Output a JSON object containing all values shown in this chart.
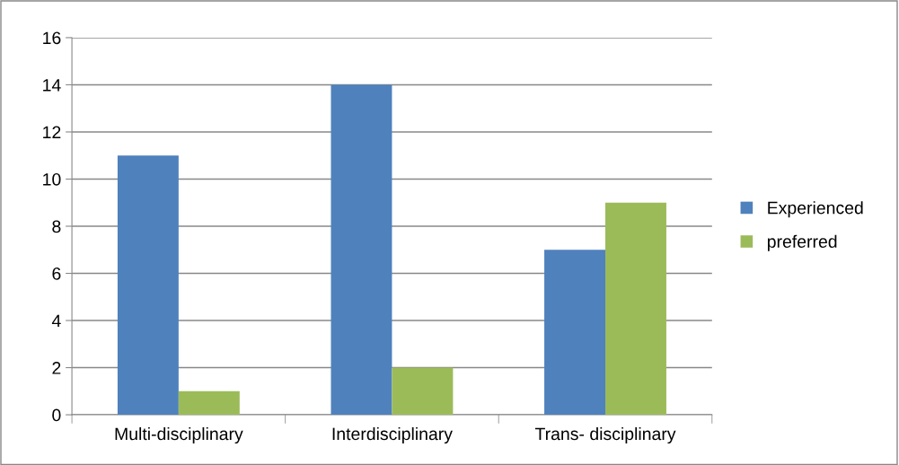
{
  "chart_data": {
    "type": "bar",
    "categories": [
      "Multi-disciplinary",
      "Interdisciplinary",
      "Trans- disciplinary"
    ],
    "series": [
      {
        "name": "Experienced",
        "color": "#4f81bd",
        "values": [
          11,
          14,
          7
        ]
      },
      {
        "name": "preferred",
        "color": "#9bbb59",
        "values": [
          1,
          2,
          9
        ]
      }
    ],
    "ylim": [
      0,
      16
    ],
    "yticks": [
      0,
      2,
      4,
      6,
      8,
      10,
      12,
      14,
      16
    ],
    "grid": "y",
    "legend": "right"
  }
}
